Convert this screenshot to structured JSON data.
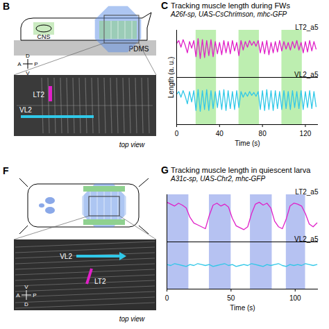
{
  "chart_data": [
    {
      "panel": "C",
      "type": "line",
      "title": "Tracking muscle length during FWs",
      "subtitle": "A26f-sp, UAS-CsChrimson, mhc-GFP",
      "xlabel": "Time (s)",
      "ylabel": "Length (a. u.)",
      "xlim": [
        0,
        132
      ],
      "xticks": [
        0,
        40,
        80,
        120
      ],
      "ylim": [
        0,
        10
      ],
      "yticks": [],
      "tick_labels": "x",
      "baseline": 5,
      "stimulus": {
        "periods": [
          [
            18,
            37
          ],
          [
            58,
            77
          ],
          [
            98,
            117
          ]
        ],
        "color": "#bdeeb0"
      },
      "x": [
        0,
        2,
        4,
        6,
        8,
        10,
        12,
        14,
        16,
        18,
        20,
        22,
        24,
        26,
        28,
        30,
        32,
        34,
        36,
        38,
        40,
        42,
        44,
        46,
        48,
        50,
        52,
        54,
        56,
        58,
        60,
        62,
        64,
        66,
        68,
        70,
        72,
        74,
        76,
        78,
        80,
        82,
        84,
        86,
        88,
        90,
        92,
        94,
        96,
        98,
        100,
        102,
        104,
        106,
        108,
        110,
        112,
        114,
        116,
        118,
        120,
        122,
        124,
        126,
        128,
        130
      ],
      "series": [
        {
          "name": "LT2_a5",
          "color": "#e020c8",
          "values": [
            8.6,
            8.9,
            8.2,
            9.0,
            8.4,
            7.6,
            8.8,
            8.1,
            8.9,
            7.2,
            9.1,
            7.0,
            9.0,
            7.1,
            8.9,
            7.3,
            9.0,
            7.2,
            8.8,
            7.5,
            8.7,
            7.4,
            8.9,
            7.6,
            8.8,
            7.5,
            8.9,
            7.8,
            8.7,
            7.3,
            8.9,
            7.9,
            8.8,
            8.2,
            8.9,
            8.4,
            8.8,
            8.3,
            8.9,
            7.6,
            8.8,
            7.5,
            8.9,
            7.4,
            8.7,
            7.6,
            8.8,
            7.7,
            8.9,
            7.8,
            8.8,
            8.0,
            8.7,
            7.9,
            8.8,
            8.1,
            8.9,
            7.9,
            8.7,
            7.6,
            8.8,
            7.7,
            8.9,
            7.8,
            8.8,
            8.0
          ]
        },
        {
          "name": "VL2_a5",
          "color": "#30c8e8",
          "values": [
            3.2,
            3.5,
            2.9,
            3.6,
            3.0,
            2.2,
            3.5,
            2.4,
            3.6,
            1.5,
            3.7,
            1.4,
            3.6,
            1.6,
            3.7,
            1.5,
            3.6,
            1.7,
            3.5,
            1.8,
            3.6,
            1.6,
            3.7,
            1.5,
            3.6,
            1.7,
            3.5,
            1.6,
            3.6,
            1.8,
            3.5,
            2.9,
            3.4,
            3.0,
            3.5,
            3.1,
            3.4,
            3.0,
            3.5,
            1.6,
            3.6,
            1.5,
            3.7,
            1.6,
            3.6,
            1.5,
            3.6,
            1.7,
            3.5,
            1.6,
            3.6,
            1.7,
            3.5,
            1.6,
            3.6,
            1.8,
            3.5,
            1.7,
            3.6,
            1.6,
            3.5,
            1.8,
            3.6,
            1.7,
            3.5,
            1.9
          ]
        }
      ]
    },
    {
      "panel": "G",
      "type": "line",
      "title": "Tracking muscle length in quiescent larva",
      "subtitle": "A31c-sp, UAS-Chr2, mhc-GFP",
      "xlabel": "Time (s)",
      "xlim": [
        0,
        118
      ],
      "xticks": [
        0,
        50,
        100
      ],
      "ylim": [
        0,
        10
      ],
      "yticks": [],
      "tick_labels": "x",
      "baseline": 5,
      "stimulus": {
        "periods": [
          [
            0,
            17
          ],
          [
            33,
            50
          ],
          [
            65,
            82
          ],
          [
            93,
            108
          ]
        ],
        "color": "#b6c2f2"
      },
      "x": [
        0,
        3,
        6,
        9,
        12,
        15,
        18,
        21,
        24,
        27,
        30,
        33,
        36,
        39,
        42,
        45,
        48,
        51,
        54,
        57,
        60,
        63,
        66,
        69,
        72,
        75,
        78,
        81,
        84,
        87,
        90,
        93,
        96,
        99,
        102,
        105,
        108,
        111,
        114,
        117
      ],
      "series": [
        {
          "name": "LT2_a5",
          "color": "#e020c8",
          "values": [
            9.2,
            9.0,
            8.8,
            9.1,
            8.9,
            8.6,
            7.6,
            7.0,
            6.8,
            6.6,
            6.4,
            7.8,
            8.9,
            9.1,
            8.8,
            9.0,
            8.7,
            7.5,
            6.7,
            6.5,
            6.3,
            6.6,
            8.0,
            9.0,
            9.2,
            8.9,
            9.1,
            8.6,
            7.2,
            6.6,
            6.4,
            7.4,
            8.8,
            9.1,
            9.0,
            8.8,
            8.0,
            6.9,
            6.6,
            7.0
          ]
        },
        {
          "name": "VL2_a5",
          "color": "#30c8e8",
          "values": [
            2.6,
            2.5,
            2.7,
            2.6,
            2.5,
            2.4,
            2.6,
            2.5,
            2.7,
            2.6,
            2.5,
            2.6,
            2.4,
            2.5,
            2.6,
            2.7,
            2.5,
            2.6,
            2.4,
            2.5,
            2.6,
            2.5,
            2.7,
            2.6,
            2.5,
            2.4,
            2.6,
            2.5,
            2.6,
            2.7,
            2.5,
            2.4,
            2.6,
            2.5,
            2.6,
            2.5,
            2.7,
            2.6,
            2.5,
            2.6
          ]
        }
      ]
    }
  ],
  "diagrams": [
    {
      "panel": "B",
      "side": "side view",
      "labels": {
        "cns": "CNS",
        "substrate": "PDMS",
        "muscle1": "LT2",
        "muscle2": "VL2",
        "view": "top view"
      },
      "compass": {
        "up": "D",
        "down": "V",
        "left": "A",
        "right": "P"
      }
    },
    {
      "panel": "F",
      "labels": {
        "muscle1": "LT2",
        "muscle2": "VL2",
        "view": "top view"
      },
      "compass": {
        "up": "V",
        "down": "D",
        "left": "A",
        "right": "P"
      }
    }
  ]
}
